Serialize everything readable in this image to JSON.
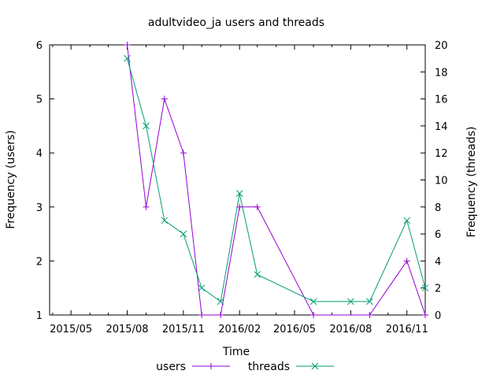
{
  "chart_data": {
    "type": "line",
    "title": "adultvideo_ja users and threads",
    "xlabel": "Time",
    "ylabel": "Frequency (users)",
    "y2label": "Frequency (threads)",
    "xlim": [
      "2015-03-27",
      "2016-12-01"
    ],
    "ylim": [
      1,
      6
    ],
    "y2lim": [
      0,
      20
    ],
    "x_ticks": [
      "2015-05-01",
      "2015-08-01",
      "2015-11-01",
      "2016-02-01",
      "2016-05-01",
      "2016-08-01",
      "2016-11-01"
    ],
    "x_tick_labels": [
      "2015/05",
      "2015/08",
      "2015/11",
      "2016/02",
      "2016/05",
      "2016/08",
      "2016/11"
    ],
    "y_ticks": [
      1,
      2,
      3,
      4,
      5,
      6
    ],
    "y_tick_labels": [
      "1",
      "2",
      "3",
      "4",
      "5",
      "6"
    ],
    "y2_ticks": [
      0,
      2,
      4,
      6,
      8,
      10,
      12,
      14,
      16,
      18,
      20
    ],
    "y2_tick_labels": [
      "0",
      "2",
      "4",
      "6",
      "8",
      "10",
      "12",
      "14",
      "16",
      "18",
      "20"
    ],
    "grid": false,
    "legend_position": "bottom",
    "series": [
      {
        "name": "users",
        "axis": "left",
        "color": "#9400d3",
        "marker": "plus",
        "x": [
          "2015-08-01",
          "2015-09-01",
          "2015-10-01",
          "2015-11-01",
          "2015-12-01",
          "2016-01-01",
          "2016-02-01",
          "2016-03-01",
          "2016-06-01",
          "2016-09-01",
          "2016-11-01",
          "2016-12-01"
        ],
        "values": [
          6,
          3,
          5,
          4,
          1,
          1,
          3,
          3,
          1,
          1,
          2,
          1
        ]
      },
      {
        "name": "threads",
        "axis": "right",
        "color": "#009e73",
        "marker": "cross",
        "x": [
          "2015-08-01",
          "2015-09-01",
          "2015-10-01",
          "2015-11-01",
          "2015-12-01",
          "2016-01-01",
          "2016-02-01",
          "2016-03-01",
          "2016-06-01",
          "2016-08-01",
          "2016-09-01",
          "2016-11-01",
          "2016-12-01"
        ],
        "values": [
          19,
          14,
          7,
          6,
          2,
          1,
          9,
          3,
          1,
          1,
          1,
          7,
          2
        ]
      }
    ]
  }
}
